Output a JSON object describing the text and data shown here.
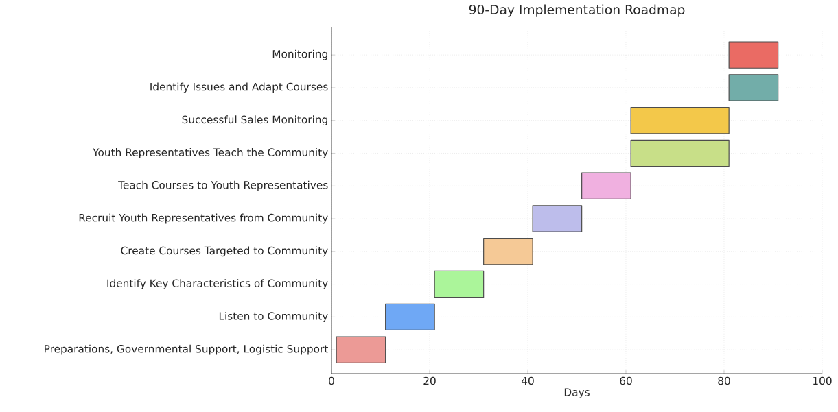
{
  "chart_data": {
    "type": "bar",
    "orientation": "horizontal",
    "title": "90-Day Implementation Roadmap",
    "xlabel": "Days",
    "categories": [
      "Monitoring",
      "Identify Issues and Adapt Courses",
      "Successful Sales Monitoring",
      "Youth Representatives Teach the Community",
      "Teach Courses to Youth Representatives",
      "Recruit Youth Representatives from Community",
      "Create Courses Targeted to Community",
      "Identify Key Characteristics of Community",
      "Listen to Community",
      "Preparations, Governmental Support, Logistic Support"
    ],
    "base": [
      81,
      81,
      61,
      61,
      51,
      41,
      31,
      21,
      11,
      1
    ],
    "values": [
      10,
      10,
      20,
      20,
      10,
      10,
      10,
      10,
      10,
      10
    ],
    "colors": [
      "#ea6b64",
      "#72ada9",
      "#f3c84a",
      "#c8df88",
      "#f0b0e0",
      "#bdbdeb",
      "#f5c996",
      "#abf59a",
      "#6fa8f5",
      "#ec9a96"
    ],
    "xlim": [
      0,
      100
    ],
    "xticks": [
      0,
      20,
      40,
      60,
      80,
      100
    ],
    "grid": true
  }
}
